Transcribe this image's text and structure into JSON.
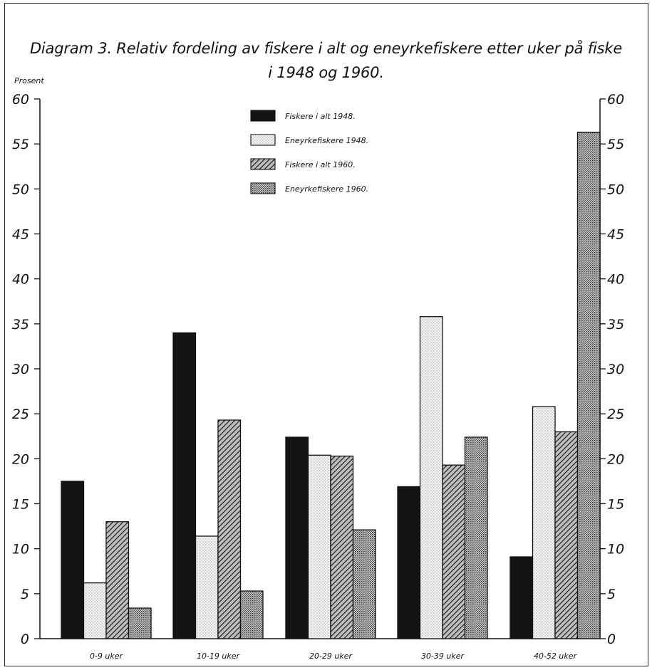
{
  "title_line1": "Diagram 3. Relativ fordeling av fiskere i alt og eneyrkefiskere etter uker på fiske",
  "title_line2": "i 1948 og 1960.",
  "chart_data": {
    "type": "bar",
    "title": "Diagram 3. Relativ fordeling av fiskere i alt og eneyrkefiskere etter uker på fiske i 1948 og 1960.",
    "ylabel": "Prosent",
    "xlabel": "",
    "ylim": [
      0,
      60
    ],
    "yticks": [
      0,
      5,
      10,
      15,
      20,
      25,
      30,
      35,
      40,
      45,
      50,
      55,
      60
    ],
    "categories": [
      "0-9 uker",
      "10-19 uker",
      "20-29 uker",
      "30-39 uker",
      "40-52 uker"
    ],
    "series": [
      {
        "name": "Fiskere i alt 1948.",
        "pattern": "solid-black",
        "values": [
          17.5,
          34.0,
          22.4,
          16.9,
          9.1
        ]
      },
      {
        "name": "Eneyrkefiskere 1948.",
        "pattern": "light-dots",
        "values": [
          6.2,
          11.4,
          20.4,
          35.8,
          25.8
        ]
      },
      {
        "name": "Fiskere i alt 1960.",
        "pattern": "diagonal-hatch",
        "values": [
          13.0,
          24.3,
          20.3,
          19.3,
          23.0
        ]
      },
      {
        "name": "Eneyrkefiskere 1960.",
        "pattern": "dense-dots",
        "values": [
          3.4,
          5.3,
          12.1,
          22.4,
          56.3
        ]
      }
    ],
    "legend_position": "top-center",
    "grid": false,
    "right_axis": true
  }
}
